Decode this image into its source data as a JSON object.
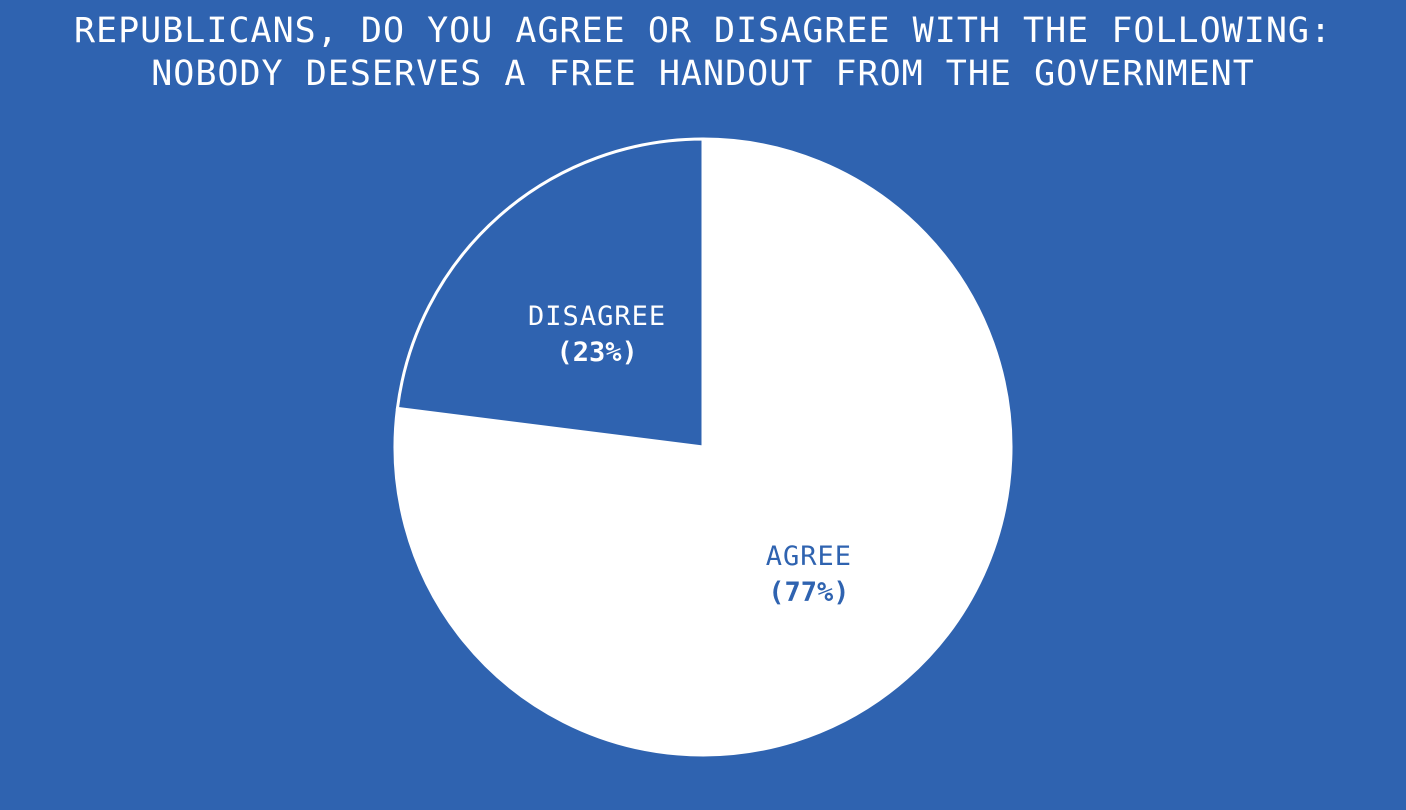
{
  "chart_data": {
    "type": "pie",
    "title_lines": [
      "REPUBLICANS, DO YOU AGREE OR DISAGREE WITH THE FOLLOWING:",
      "NOBODY DESERVES A FREE HANDOUT FROM THE GOVERNMENT"
    ],
    "slices": [
      {
        "label": "AGREE",
        "value": 77,
        "value_label": "(77%)",
        "color": "#ffffff",
        "text_color": "#2f63b0"
      },
      {
        "label": "DISAGREE",
        "value": 23,
        "value_label": "(23%)",
        "color": "#2f63b0",
        "text_color": "#ffffff"
      }
    ]
  },
  "colors": {
    "background": "#2f63b0",
    "slice_border": "#ffffff"
  }
}
